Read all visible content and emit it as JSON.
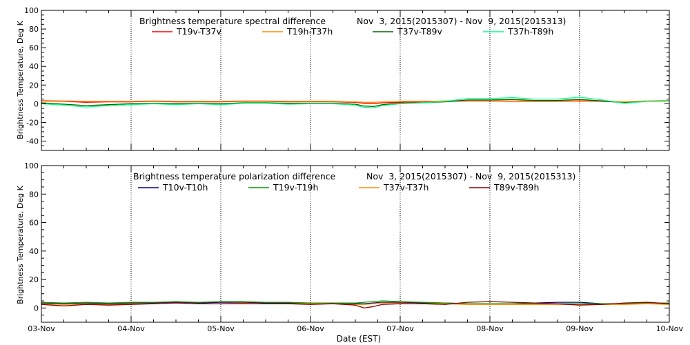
{
  "colors": {
    "background": "#ffffff",
    "axis": "#000000",
    "gridline": "#000000",
    "series_red": "#ff0000",
    "series_orange": "#ff8c00",
    "series_darkgreen": "#006400",
    "series_lightgreen": "#00ff7f",
    "series_navy": "#00008b",
    "series_green": "#00a000",
    "series_darkred": "#8b0000"
  },
  "chart_data": [
    {
      "type": "line",
      "title": "Brightness temperature spectral difference",
      "date_range": "Nov  3, 2015(2015307) - Nov  9, 2015(2015313)",
      "ylabel": "Brightness Temperature, Deg K",
      "xlabel": "",
      "ylim": [
        -50,
        100
      ],
      "yticks": [
        -40,
        -20,
        0,
        20,
        40,
        60,
        80,
        100
      ],
      "xlim": [
        0,
        7
      ],
      "x_tick_labels": [],
      "vertical_gridlines_at": [
        1,
        2,
        3,
        4,
        5,
        6
      ],
      "grid": "vertical dotted",
      "legend_position": "top",
      "series": [
        {
          "name": "T19v-T37v",
          "color": "#ff0000",
          "x": [
            0,
            0.25,
            0.5,
            0.75,
            1,
            1.25,
            1.5,
            1.75,
            2,
            2.25,
            2.5,
            2.75,
            3,
            3.25,
            3.5,
            3.6,
            3.7,
            3.8,
            4,
            4.25,
            4.5,
            4.75,
            5,
            5.25,
            5.5,
            5.75,
            6,
            6.25,
            6.5,
            6.75,
            7
          ],
          "y": [
            3,
            2.5,
            1.5,
            2,
            2,
            2.5,
            2,
            2,
            2,
            2.5,
            2.5,
            2,
            2,
            2,
            1.5,
            0.5,
            0,
            1,
            1.5,
            2,
            2.5,
            3,
            3,
            2.5,
            2.5,
            2.5,
            3,
            2.5,
            1.5,
            2.5,
            3
          ]
        },
        {
          "name": "T19h-T37h",
          "color": "#ff8c00",
          "x": [
            0,
            0.25,
            0.5,
            0.75,
            1,
            1.25,
            1.5,
            1.75,
            2,
            2.25,
            2.5,
            2.75,
            3,
            3.25,
            3.5,
            3.6,
            3.7,
            3.8,
            4,
            4.25,
            4.5,
            4.75,
            5,
            5.25,
            5.5,
            5.75,
            6,
            6.25,
            6.5,
            6.75,
            7
          ],
          "y": [
            3.5,
            3,
            2.5,
            2.5,
            2.5,
            3,
            2.5,
            2.5,
            2.5,
            3,
            3,
            2.5,
            2.5,
            2.5,
            2,
            1.5,
            1.5,
            2,
            2.5,
            2.5,
            3,
            3.5,
            3.5,
            3,
            3,
            3,
            3.5,
            3,
            2,
            3,
            3.5
          ]
        },
        {
          "name": "T37v-T89v",
          "color": "#006400",
          "x": [
            0,
            0.25,
            0.5,
            0.75,
            1,
            1.25,
            1.5,
            1.75,
            2,
            2.25,
            2.5,
            2.75,
            3,
            3.25,
            3.5,
            3.6,
            3.7,
            3.8,
            4,
            4.25,
            4.5,
            4.75,
            5,
            5.25,
            5.5,
            5.75,
            6,
            6.25,
            6.5,
            6.75,
            7
          ],
          "y": [
            1,
            -0.5,
            -2,
            -1,
            0,
            0.5,
            0,
            0.5,
            0,
            1,
            1,
            0.5,
            0.5,
            0.5,
            -0.5,
            -2.5,
            -3,
            -1,
            0.5,
            1,
            2,
            4,
            4,
            4.5,
            3.5,
            3.5,
            4.5,
            3,
            1,
            2.5,
            3
          ]
        },
        {
          "name": "T37h-T89h",
          "color": "#00ff7f",
          "x": [
            0,
            0.25,
            0.5,
            0.75,
            1,
            1.25,
            1.5,
            1.75,
            2,
            2.25,
            2.5,
            2.75,
            3,
            3.25,
            3.5,
            3.6,
            3.7,
            3.8,
            4,
            4.25,
            4.5,
            4.75,
            5,
            5.25,
            5.5,
            5.75,
            6,
            6.25,
            6.5,
            6.75,
            7
          ],
          "y": [
            0,
            -1.5,
            -3.5,
            -2,
            -1,
            0,
            -1,
            0,
            -1,
            0.5,
            0.5,
            -0.5,
            0,
            0,
            -1.5,
            -4,
            -4.5,
            -2,
            0,
            1,
            2.5,
            5.5,
            5.5,
            6.5,
            5,
            5,
            7,
            4,
            0.5,
            2.5,
            3
          ]
        }
      ]
    },
    {
      "type": "line",
      "title": "Brightness temperature polarization difference",
      "date_range": "Nov  3, 2015(2015307) - Nov  9, 2015(2015313)",
      "ylabel": "Brightness Temperature, Deg K",
      "xlabel": "Date (EST)",
      "ylim": [
        -10,
        100
      ],
      "yticks": [
        0,
        20,
        40,
        60,
        80,
        100
      ],
      "xlim": [
        0,
        7
      ],
      "x_tick_labels": [
        "03-Nov",
        "04-Nov",
        "05-Nov",
        "06-Nov",
        "07-Nov",
        "08-Nov",
        "09-Nov",
        "10-Nov"
      ],
      "vertical_gridlines_at": [
        1,
        2,
        3,
        4,
        5,
        6
      ],
      "grid": "vertical dotted",
      "legend_position": "top",
      "series": [
        {
          "name": "T10v-T10h",
          "color": "#00008b",
          "x": [
            0,
            0.25,
            0.5,
            0.75,
            1,
            1.25,
            1.5,
            1.75,
            2,
            2.25,
            2.5,
            2.75,
            3,
            3.25,
            3.5,
            3.6,
            3.7,
            3.8,
            4,
            4.25,
            4.5,
            4.75,
            5,
            5.25,
            5.5,
            5.75,
            6,
            6.25,
            6.5,
            6.75,
            7
          ],
          "y": [
            3.5,
            3,
            3.5,
            3,
            3.5,
            3.5,
            4,
            3.5,
            4,
            4,
            3.5,
            3.5,
            3.5,
            3.5,
            3,
            3,
            3.5,
            4,
            4,
            3.5,
            3.5,
            3,
            3,
            3,
            3.5,
            4,
            4,
            3,
            3,
            4,
            3
          ]
        },
        {
          "name": "T19v-T19h",
          "color": "#00a000",
          "x": [
            0,
            0.25,
            0.5,
            0.75,
            1,
            1.25,
            1.5,
            1.75,
            2,
            2.25,
            2.5,
            2.75,
            3,
            3.25,
            3.5,
            3.6,
            3.7,
            3.8,
            4,
            4.25,
            4.5,
            4.75,
            5,
            5.25,
            5.5,
            5.75,
            6,
            6.25,
            6.5,
            6.75,
            7
          ],
          "y": [
            4,
            3.5,
            4,
            3.5,
            4,
            4,
            4.5,
            4,
            4.5,
            4.5,
            4,
            4,
            3.5,
            3.5,
            3.5,
            4,
            4.5,
            5,
            4.5,
            4,
            3.5,
            3,
            3,
            3,
            3,
            3,
            3,
            3,
            3,
            3.5,
            3.5
          ]
        },
        {
          "name": "T37v-T37h",
          "color": "#ff8c00",
          "x": [
            0,
            0.25,
            0.5,
            0.75,
            1,
            1.25,
            1.5,
            1.75,
            2,
            2.25,
            2.5,
            2.75,
            3,
            3.25,
            3.5,
            3.6,
            3.7,
            3.8,
            4,
            4.25,
            4.5,
            4.75,
            5,
            5.25,
            5.5,
            5.75,
            6,
            6.25,
            6.5,
            6.75,
            7
          ],
          "y": [
            3,
            2.5,
            3,
            2.5,
            3,
            3,
            3.5,
            3,
            3,
            3.5,
            3,
            3,
            3,
            3,
            2.5,
            2.5,
            3,
            3.5,
            3.5,
            3,
            3,
            2.5,
            2.5,
            2.5,
            2.5,
            2.5,
            2.5,
            2.5,
            2.5,
            3,
            2.5
          ]
        },
        {
          "name": "T89v-T89h",
          "color": "#8b0000",
          "x": [
            0,
            0.25,
            0.5,
            0.75,
            1,
            1.25,
            1.5,
            1.75,
            2,
            2.25,
            2.5,
            2.75,
            3,
            3.25,
            3.5,
            3.6,
            3.7,
            3.8,
            4,
            4.25,
            4.5,
            4.75,
            5,
            5.25,
            5.5,
            5.75,
            6,
            6.25,
            6.5,
            6.75,
            7
          ],
          "y": [
            2.5,
            1.5,
            2.5,
            2,
            2.5,
            3,
            3.5,
            3,
            3,
            3,
            3,
            3,
            2.5,
            3,
            2,
            0,
            1,
            2.5,
            3,
            3,
            2.5,
            4,
            4.5,
            4,
            3.5,
            3,
            2,
            2.5,
            3.5,
            4,
            3
          ]
        }
      ]
    }
  ]
}
